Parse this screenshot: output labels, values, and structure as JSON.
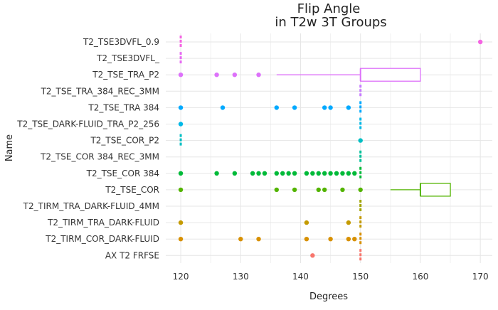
{
  "chart_data": {
    "type": "boxplot",
    "title": "Flip Angle",
    "subtitle": "in T2w 3T Groups",
    "xlabel": "Degrees",
    "ylabel": "Name",
    "xlim": [
      117.5,
      172
    ],
    "xticks": [
      120,
      130,
      140,
      150,
      160,
      170
    ],
    "grid": true,
    "legend": "none",
    "categories": [
      "T2_TSE3DVFL_0.9",
      "T2_TSE3DVFL_",
      "T2_TSE_TRA_P2",
      "T2_TSE_TRA_384_REC_3MM",
      "T2_TSE_TRA 384",
      "T2_TSE_DARK-FLUID_TRA_P2_256",
      "T2_TSE_COR_P2",
      "T2_TSE_COR 384_REC_3MM",
      "T2_TSE_COR 384",
      "T2_TSE_COR",
      "T2_TIRM_TRA_DARK-FLUID_4MM",
      "T2_TIRM_TRA_DARK-FLUID",
      "T2_TIRM_COR_DARK-FLUID",
      "AX T2 FRFSE"
    ],
    "groups": [
      {
        "name": "T2_TSE3DVFL_0.9",
        "color": "#F564E3",
        "box": [
          120,
          120,
          120,
          120,
          120
        ],
        "outliers": [
          170
        ]
      },
      {
        "name": "T2_TSE3DVFL_",
        "color": "#E76BF3",
        "box": [
          120,
          120,
          120,
          120,
          120
        ],
        "outliers": []
      },
      {
        "name": "T2_TSE_TRA_P2",
        "color": "#DD71FA",
        "box": [
          136,
          150,
          150,
          160,
          160
        ],
        "outliers": [
          120,
          126,
          129,
          133
        ]
      },
      {
        "name": "T2_TSE_TRA_384_REC_3MM",
        "color": "#C77CFF",
        "box": [
          150,
          150,
          150,
          150,
          150
        ],
        "outliers": []
      },
      {
        "name": "T2_TSE_TRA 384",
        "color": "#00A9FF",
        "box": [
          150,
          150,
          150,
          150,
          150
        ],
        "outliers": [
          120,
          127,
          136,
          139,
          144,
          145,
          148
        ]
      },
      {
        "name": "T2_TSE_DARK-FLUID_TRA_P2_256",
        "color": "#00B8E7",
        "box": [
          150,
          150,
          150,
          150,
          150
        ],
        "outliers": [
          120
        ]
      },
      {
        "name": "T2_TSE_COR_P2",
        "color": "#00BFC4",
        "box": [
          120,
          120,
          120,
          120,
          120
        ],
        "outliers": [
          150
        ]
      },
      {
        "name": "T2_TSE_COR 384_REC_3MM",
        "color": "#00C19A",
        "box": [
          150,
          150,
          150,
          150,
          150
        ],
        "outliers": []
      },
      {
        "name": "T2_TSE_COR 384",
        "color": "#00BA38",
        "box": [
          150,
          150,
          150,
          150,
          150
        ],
        "outliers": [
          120,
          126,
          129,
          132,
          133,
          134,
          136,
          137,
          138,
          139,
          141,
          142,
          143,
          144,
          145,
          146,
          147,
          148,
          149
        ]
      },
      {
        "name": "T2_TSE_COR",
        "color": "#53B400",
        "box": [
          155,
          160,
          160,
          165,
          165
        ],
        "outliers": [
          120,
          136,
          139,
          143,
          144,
          147,
          150
        ]
      },
      {
        "name": "T2_TIRM_TRA_DARK-FLUID_4MM",
        "color": "#A3A500",
        "box": [
          150,
          150,
          150,
          150,
          150
        ],
        "outliers": []
      },
      {
        "name": "T2_TIRM_TRA_DARK-FLUID",
        "color": "#C49A00",
        "box": [
          150,
          150,
          150,
          150,
          150
        ],
        "outliers": [
          120,
          141,
          148
        ]
      },
      {
        "name": "T2_TIRM_COR_DARK-FLUID",
        "color": "#D89000",
        "box": [
          150,
          150,
          150,
          150,
          150
        ],
        "outliers": [
          120,
          130,
          133,
          141,
          145,
          148,
          149
        ]
      },
      {
        "name": "AX T2 FRFSE",
        "color": "#F8766D",
        "box": [
          150,
          150,
          150,
          150,
          150
        ],
        "outliers": [
          142
        ]
      }
    ]
  }
}
